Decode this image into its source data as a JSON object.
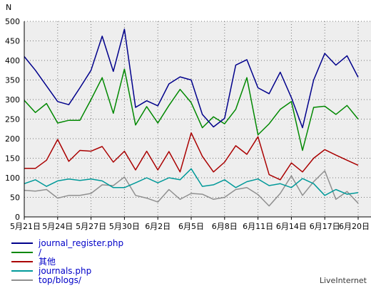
{
  "chart_data": {
    "type": "line",
    "ylabel": "N",
    "ylim": [
      0,
      500
    ],
    "yticks": [
      0,
      50,
      100,
      150,
      200,
      250,
      300,
      350,
      400,
      450,
      500
    ],
    "grid": true,
    "x": [
      "5月21日",
      "5月22日",
      "5月23日",
      "5月24日",
      "5月25日",
      "5月26日",
      "5月27日",
      "5月28日",
      "5月29日",
      "5月30日",
      "5月31日",
      "6月1日",
      "6月2日",
      "6月3日",
      "6月4日",
      "6月5日",
      "6月6日",
      "6月7日",
      "6月8日",
      "6月9日",
      "6月10日",
      "6月11日",
      "6月12日",
      "6月13日",
      "6月14日",
      "6月15日",
      "6月16日",
      "6月17日",
      "6月18日",
      "6月19日",
      "6月20日"
    ],
    "xtick_labels": [
      "5月21日",
      "5月24日",
      "5月27日",
      "5月30日",
      "6月2日",
      "6月5日",
      "6月8日",
      "6月11日",
      "6月14日",
      "6月17日",
      "6月20日"
    ],
    "series": [
      {
        "name": "journal_register.php",
        "color": "#00008b",
        "values": [
          410,
          375,
          335,
          295,
          287,
          330,
          375,
          462,
          372,
          480,
          280,
          297,
          284,
          340,
          358,
          350,
          262,
          230,
          252,
          388,
          402,
          330,
          315,
          370,
          305,
          228,
          350,
          418,
          388,
          412,
          357
        ]
      },
      {
        "name": "/",
        "color": "#008800",
        "values": [
          298,
          267,
          290,
          240,
          247,
          247,
          300,
          356,
          265,
          378,
          235,
          282,
          240,
          285,
          326,
          292,
          228,
          256,
          238,
          275,
          356,
          210,
          238,
          275,
          295,
          170,
          280,
          283,
          262,
          285,
          250
        ]
      },
      {
        "name": "其他",
        "color": "#aa0000",
        "values": [
          124,
          124,
          145,
          198,
          142,
          170,
          168,
          180,
          140,
          168,
          120,
          168,
          120,
          167,
          115,
          215,
          155,
          115,
          140,
          182,
          160,
          205,
          108,
          95,
          138,
          115,
          150,
          172,
          158,
          145,
          132
        ]
      },
      {
        "name": "journals.php",
        "color": "#009999",
        "values": [
          85,
          95,
          78,
          92,
          97,
          93,
          97,
          92,
          75,
          75,
          87,
          100,
          87,
          100,
          95,
          123,
          78,
          82,
          95,
          75,
          90,
          97,
          80,
          85,
          75,
          98,
          85,
          55,
          70,
          58,
          62
        ]
      },
      {
        "name": "top/blogs/",
        "color": "#909090",
        "values": [
          68,
          66,
          70,
          48,
          55,
          55,
          60,
          82,
          80,
          102,
          55,
          48,
          38,
          70,
          45,
          60,
          58,
          45,
          50,
          70,
          75,
          57,
          28,
          60,
          105,
          55,
          90,
          118,
          45,
          65,
          35
        ]
      }
    ]
  },
  "brand": "LiveInternet"
}
